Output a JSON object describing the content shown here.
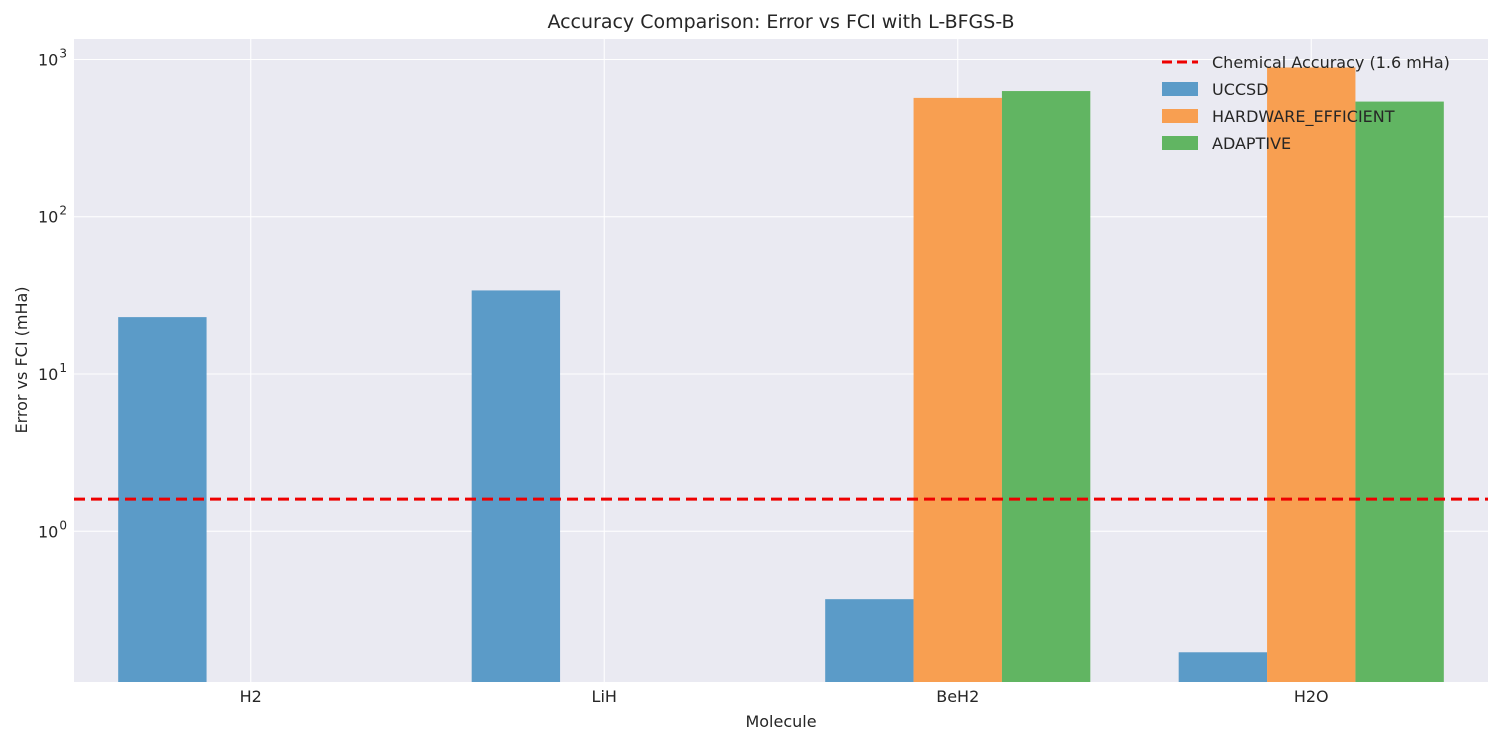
{
  "chart_data": {
    "type": "bar",
    "title": "Accuracy Comparison: Error vs FCI with L-BFGS-B",
    "xlabel": "Molecule",
    "ylabel": "Error vs FCI (mHa)",
    "yscale": "log",
    "ylim": [
      0.11,
      1350
    ],
    "yticks": [
      {
        "base": "10",
        "exp": "0"
      },
      {
        "base": "10",
        "exp": "1"
      },
      {
        "base": "10",
        "exp": "2"
      },
      {
        "base": "10",
        "exp": "3"
      }
    ],
    "categories": [
      "H2",
      "LiH",
      "BeH2",
      "H2O"
    ],
    "series": [
      {
        "name": "UCCSD",
        "color": "#5b9bc8",
        "values": [
          23,
          34,
          0.37,
          0.17
        ]
      },
      {
        "name": "HARDWARE_EFFICIENT",
        "color": "#f89f51",
        "values": [
          null,
          null,
          570,
          890
        ]
      },
      {
        "name": "ADAPTIVE",
        "color": "#61b562",
        "values": [
          null,
          null,
          630,
          540
        ]
      }
    ],
    "reference_line": {
      "label": "Chemical Accuracy (1.6 mHa)",
      "value": 1.6,
      "color": "#ee0000"
    },
    "grid": true,
    "legend_position": "top-right",
    "background": "#eaeaf2"
  }
}
